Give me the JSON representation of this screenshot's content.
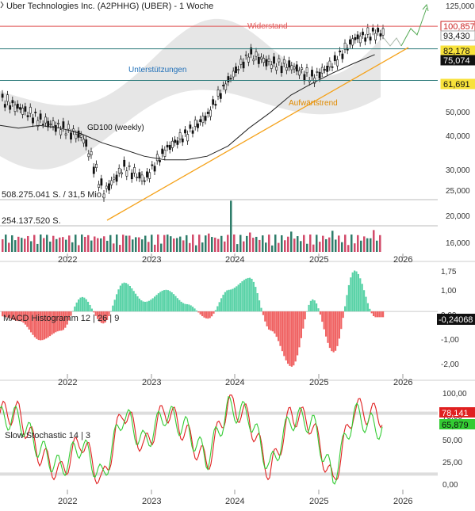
{
  "header": {
    "title": "Uber Technologies Inc. (A2PHHG) (UBER) - 1 Woche"
  },
  "colors": {
    "resistance": "#e05555",
    "support": "#2c7a7a",
    "support_label": "#1f6fb8",
    "trend": "#f5a21a",
    "ma": "#222222",
    "up": "#2e7d6a",
    "down": "#d24a6a",
    "macd_pos": "#5bd3a8",
    "macd_neg": "#f06464",
    "stoch_k": "#e02020",
    "stoch_d": "#33cc33",
    "projection": "#55aa55",
    "axis_text": "#333333",
    "grid": "#dddddd"
  },
  "chart_data": [
    {
      "type": "candlestick",
      "title": "Uber Technologies Inc. (A2PHHG) (UBER) - 1 Woche",
      "y_scale": "log",
      "ylim": [
        13,
        128
      ],
      "y_ticks": [
        "125,000",
        "50,000",
        "40,000",
        "30,000",
        "25,000",
        "20,000",
        "16,000"
      ],
      "x_ticks": [
        "2022",
        "2023",
        "2024",
        "2025",
        "2026"
      ],
      "x": [
        "2021-06",
        "2021-09",
        "2021-12",
        "2022-03",
        "2022-06",
        "2022-09",
        "2022-12",
        "2023-03",
        "2023-06",
        "2023-09",
        "2023-12",
        "2024-03",
        "2024-06",
        "2024-09",
        "2024-12",
        "2025-03",
        "2025-06",
        "2025-09"
      ],
      "close": [
        48,
        43,
        40,
        37,
        22,
        28,
        25,
        33,
        38,
        45,
        62,
        78,
        72,
        70,
        63,
        72,
        90,
        95
      ],
      "moving_average": {
        "name": "GD100 (weekly)",
        "values": [
          40,
          41,
          40,
          38,
          35,
          33,
          31,
          30,
          30,
          31,
          34,
          40,
          46,
          54,
          60,
          66,
          72,
          78
        ]
      },
      "levels": [
        {
          "name": "Widerstand",
          "value": 100.857
        },
        {
          "name": "Unterstützungen",
          "values": [
            82.178,
            61.691
          ]
        }
      ],
      "trendline": {
        "name": "Aufwärtstrend"
      },
      "price_labels": [
        "100,857",
        "93,430",
        "82,178",
        "75,074",
        "61,691"
      ],
      "volume_labels": [
        "508.275.041 S. / 31,5 Mio.",
        "254.137.520 S."
      ]
    },
    {
      "type": "bar",
      "name": "MACD Histogramm 12 | 26 | 9",
      "ylim": [
        -2.7,
        1.75
      ],
      "y_ticks": [
        "1,75",
        "1,00",
        "0,00",
        "-1,00",
        "-2,00"
      ],
      "x_ticks": [
        "2022",
        "2023",
        "2024",
        "2025",
        "2026"
      ],
      "last_value": "-0,24068",
      "x": [
        "2021-06",
        "2021-09",
        "2021-12",
        "2022-03",
        "2022-06",
        "2022-09",
        "2022-12",
        "2023-03",
        "2023-06",
        "2023-09",
        "2023-12",
        "2024-03",
        "2024-06",
        "2024-09",
        "2024-12",
        "2025-03",
        "2025-06",
        "2025-09"
      ],
      "values": [
        -0.4,
        -1.2,
        -0.8,
        0.6,
        -0.5,
        1.2,
        0.4,
        0.9,
        0.3,
        -0.3,
        0.9,
        1.4,
        -0.8,
        -2.3,
        0.5,
        -1.7,
        1.7,
        -0.24
      ]
    },
    {
      "type": "line",
      "name": "Slow Stochastic 14 | 3",
      "ylim": [
        0,
        100
      ],
      "y_ticks": [
        "100,00",
        "75,00",
        "50,00",
        "25,00",
        "0,00"
      ],
      "x_ticks": [
        "2022",
        "2023",
        "2024",
        "2025",
        "2026"
      ],
      "bands": [
        80,
        20
      ],
      "last_values": [
        "78,141",
        "65,879"
      ],
      "x": [
        "2021-06",
        "2021-09",
        "2021-12",
        "2022-03",
        "2022-06",
        "2022-09",
        "2022-12",
        "2023-03",
        "2023-06",
        "2023-09",
        "2023-12",
        "2024-03",
        "2024-06",
        "2024-09",
        "2024-12",
        "2025-03",
        "2025-06",
        "2025-09"
      ],
      "series": [
        {
          "values": [
            80,
            40,
            20,
            55,
            10,
            85,
            45,
            85,
            60,
            30,
            90,
            75,
            20,
            80,
            70,
            10,
            85,
            78
          ]
        },
        {
          "values": [
            75,
            45,
            25,
            50,
            15,
            80,
            50,
            80,
            65,
            35,
            85,
            78,
            25,
            75,
            72,
            15,
            80,
            66
          ]
        }
      ]
    }
  ]
}
